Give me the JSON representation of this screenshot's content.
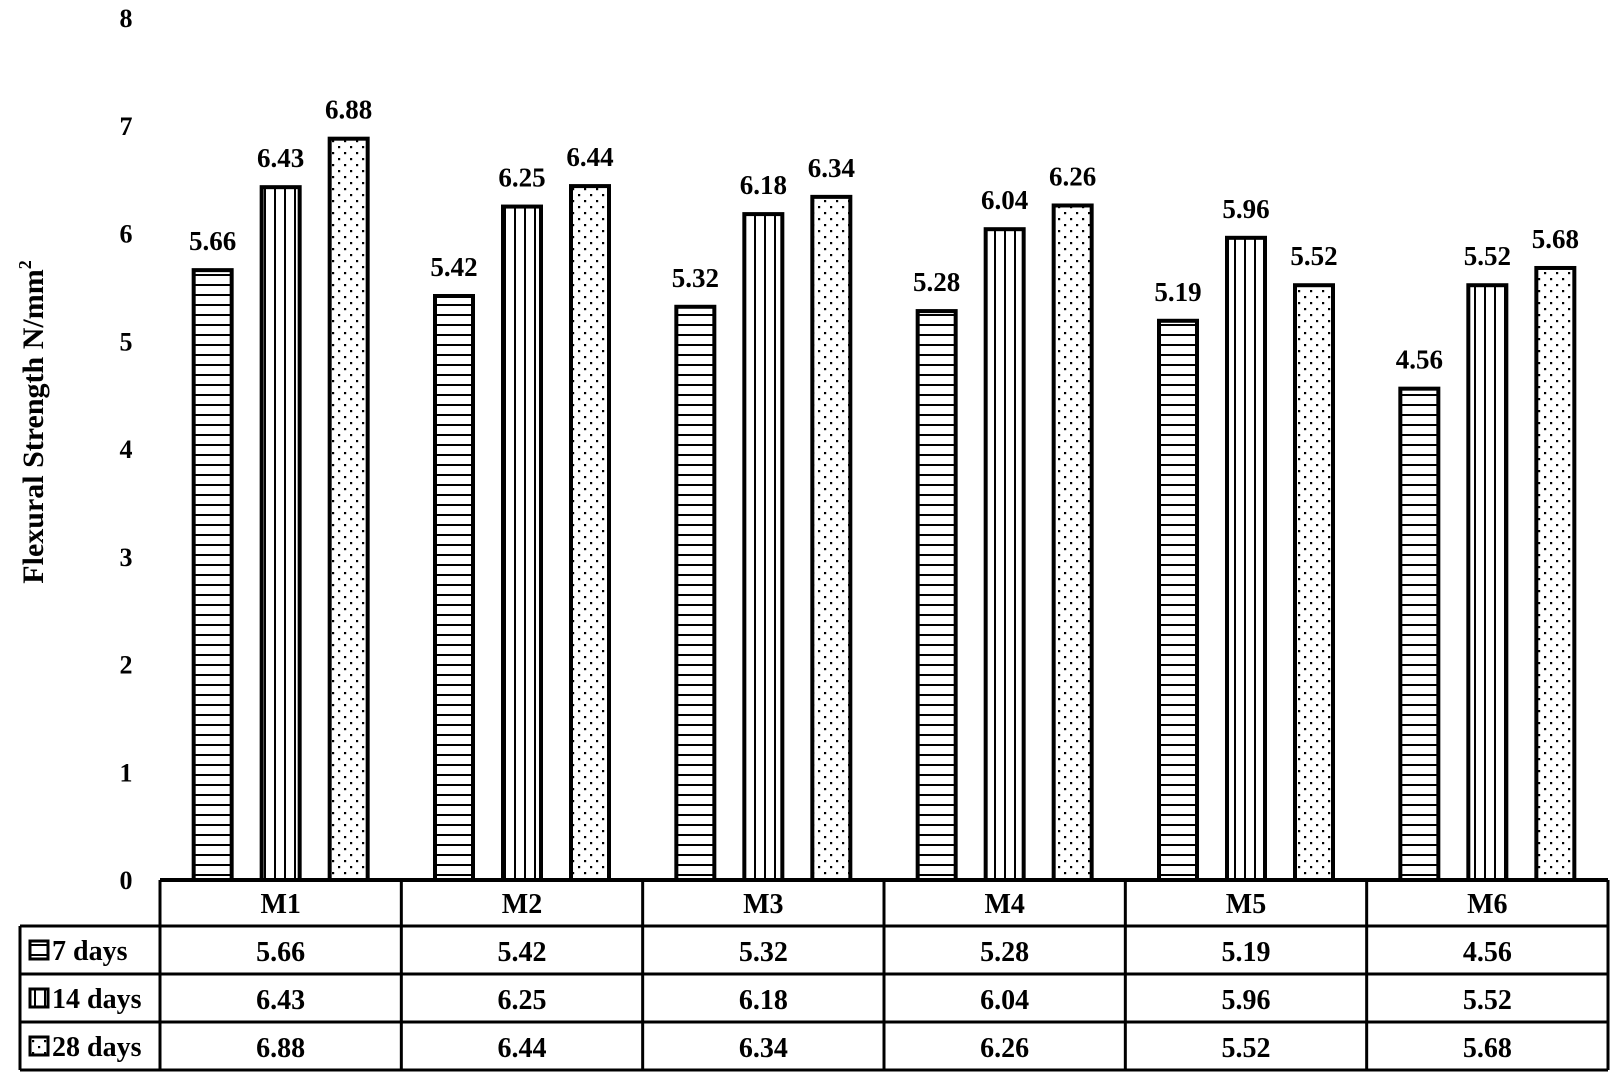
{
  "chart_data": {
    "type": "bar",
    "title": "",
    "xlabel": "",
    "ylabel": "Flexural  Strength N/mm",
    "ylabel_superscript": "2",
    "ylim": [
      0,
      8
    ],
    "yticks": [
      "0",
      "1",
      "2",
      "3",
      "4",
      "5",
      "6",
      "7",
      "8"
    ],
    "grid": false,
    "legend": "data table below plot",
    "categories": [
      "M1",
      "M2",
      "M3",
      "M4",
      "M5",
      "M6"
    ],
    "series": [
      {
        "name": "7 days",
        "pattern": "horizontal-stripes",
        "values": [
          5.66,
          5.42,
          5.32,
          5.28,
          5.19,
          4.56
        ],
        "labels": [
          "5.66",
          "5.42",
          "5.32",
          "5.28",
          "5.19",
          "4.56"
        ]
      },
      {
        "name": "14 days",
        "pattern": "vertical-stripes",
        "values": [
          6.43,
          6.25,
          6.18,
          6.04,
          5.96,
          5.52
        ],
        "labels": [
          "6.43",
          "6.25",
          "6.18",
          "6.04",
          "5.96",
          "5.52"
        ]
      },
      {
        "name": "28 days",
        "pattern": "dots",
        "values": [
          6.88,
          6.44,
          6.34,
          6.26,
          5.52,
          5.68
        ],
        "labels": [
          "6.88",
          "6.44",
          "6.34",
          "6.26",
          "5.52",
          "5.68"
        ]
      }
    ],
    "colors": {
      "ink": "#000000",
      "fill": "#ffffff"
    }
  }
}
